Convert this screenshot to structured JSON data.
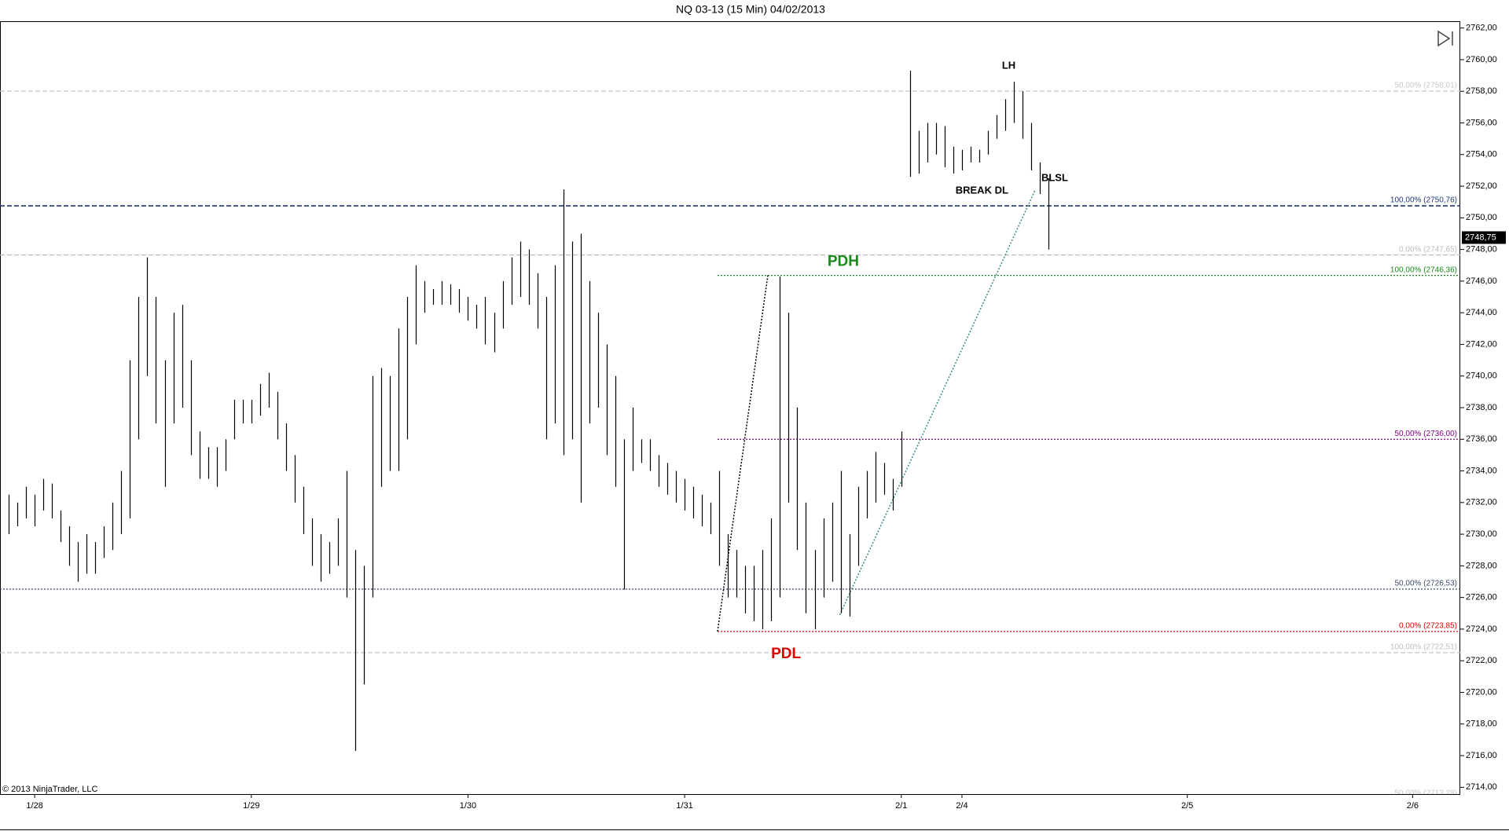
{
  "chart_data": {
    "type": "ohlc",
    "title": "NQ 03-13 (15 Min)  04/02/2013",
    "copyright": "© 2013 NinjaTrader, LLC",
    "bar_color": "#000000",
    "xlim": [
      0,
      168.5
    ],
    "xticks": [
      {
        "value": 4,
        "label": "1/28"
      },
      {
        "value": 29,
        "label": "1/29"
      },
      {
        "value": 54,
        "label": "1/30"
      },
      {
        "value": 79,
        "label": "1/31"
      },
      {
        "value": 104,
        "label": "2/1"
      },
      {
        "value": 111,
        "label": "2/4"
      },
      {
        "value": 137,
        "label": "2/5"
      },
      {
        "value": 163,
        "label": "2/6"
      }
    ],
    "ylim": [
      2713.57,
      2762.43
    ],
    "yticks": [
      {
        "value": 2714,
        "label": "2714,00"
      },
      {
        "value": 2716,
        "label": "2716,00"
      },
      {
        "value": 2718,
        "label": "2718,00"
      },
      {
        "value": 2720,
        "label": "2720,00"
      },
      {
        "value": 2722,
        "label": "2722,00"
      },
      {
        "value": 2724,
        "label": "2724,00"
      },
      {
        "value": 2726,
        "label": "2726,00"
      },
      {
        "value": 2728,
        "label": "2728,00"
      },
      {
        "value": 2730,
        "label": "2730,00"
      },
      {
        "value": 2732,
        "label": "2732,00"
      },
      {
        "value": 2734,
        "label": "2734,00"
      },
      {
        "value": 2736,
        "label": "2736,00"
      },
      {
        "value": 2738,
        "label": "2738,00"
      },
      {
        "value": 2740,
        "label": "2740,00"
      },
      {
        "value": 2742,
        "label": "2742,00"
      },
      {
        "value": 2744,
        "label": "2744,00"
      },
      {
        "value": 2746,
        "label": "2746,00"
      },
      {
        "value": 2748,
        "label": "2748,00"
      },
      {
        "value": 2750,
        "label": "2750,00"
      },
      {
        "value": 2752,
        "label": "2752,00"
      },
      {
        "value": 2754,
        "label": "2754,00"
      },
      {
        "value": 2756,
        "label": "2756,00"
      },
      {
        "value": 2758,
        "label": "2758,00"
      },
      {
        "value": 2760,
        "label": "2760,00"
      },
      {
        "value": 2762,
        "label": "2762,00"
      }
    ],
    "x": [
      1,
      2,
      3,
      4,
      5,
      6,
      7,
      8,
      9,
      10,
      11,
      12,
      13,
      14,
      15,
      16,
      17,
      18,
      19,
      20,
      21,
      22,
      23,
      24,
      25,
      26,
      27,
      28,
      29,
      30,
      31,
      32,
      33,
      34,
      35,
      36,
      37,
      38,
      39,
      40,
      41,
      42,
      43,
      44,
      45,
      46,
      47,
      48,
      49,
      50,
      51,
      52,
      53,
      54,
      55,
      56,
      57,
      58,
      59,
      60,
      61,
      62,
      63,
      64,
      65,
      66,
      67,
      68,
      69,
      70,
      71,
      72,
      73,
      74,
      75,
      76,
      77,
      78,
      79,
      80,
      81,
      82,
      83,
      84,
      85,
      86,
      87,
      88,
      89,
      90,
      91,
      92,
      93,
      94,
      95,
      96,
      97,
      98,
      99,
      100,
      101,
      102,
      103,
      104,
      105,
      106,
      107,
      108,
      109,
      110,
      111,
      112,
      113,
      114,
      115,
      116,
      117,
      118,
      119,
      120,
      121
    ],
    "low": [
      2730,
      2730.5,
      2731,
      2730.5,
      2731.5,
      2731,
      2729.5,
      2728,
      2727,
      2727.5,
      2727.5,
      2728.5,
      2729,
      2730,
      2731,
      2736,
      2740,
      2737,
      2733,
      2737,
      2738,
      2735,
      2733.5,
      2733.5,
      2733,
      2734,
      2736,
      2737,
      2737,
      2737.5,
      2738,
      2736,
      2734,
      2732,
      2730,
      2728,
      2727,
      2727.5,
      2728,
      2726,
      2716.3,
      2720.5,
      2726,
      2733,
      2734,
      2734,
      2736,
      2742,
      2744,
      2744.5,
      2744.5,
      2744.5,
      2744,
      2743.5,
      2743,
      2742,
      2741.5,
      2743,
      2744.5,
      2745,
      2744.5,
      2743,
      2736,
      2737,
      2735,
      2736,
      2732,
      2737,
      2738,
      2735,
      2733,
      2726.5,
      2734,
      2734.5,
      2734,
      2733,
      2732.5,
      2732,
      2731.5,
      2731,
      2730.5,
      2730,
      2728,
      2726,
      2726,
      2725,
      2724.5,
      2724,
      2724.5,
      2726,
      2732,
      2729,
      2725,
      2724,
      2726,
      2727,
      2725,
      2724.8,
      2728,
      2731,
      2732,
      2732.5,
      2731.5,
      2733,
      2752.6,
      2752.8,
      2753.5,
      2754,
      2753.2,
      2752.8,
      2753,
      2753.5,
      2753.5,
      2754,
      2755,
      2755.5,
      2756,
      2755,
      2753,
      2751.5,
      2748
    ],
    "high": [
      2732.5,
      2732,
      2733,
      2732.5,
      2733.5,
      2733.2,
      2731.5,
      2730.5,
      2729.5,
      2730,
      2729.5,
      2730.5,
      2732,
      2734,
      2741,
      2745,
      2747.5,
      2745,
      2741,
      2744,
      2744.5,
      2741,
      2736.5,
      2735.5,
      2735.5,
      2736,
      2738.5,
      2738.5,
      2738.5,
      2739.5,
      2740.2,
      2739,
      2737,
      2735,
      2733,
      2731,
      2730,
      2729.5,
      2731,
      2734,
      2729,
      2728,
      2740,
      2740.5,
      2740,
      2743,
      2745,
      2747,
      2746,
      2745.5,
      2746,
      2745.8,
      2745.5,
      2745,
      2744.5,
      2745,
      2744,
      2746,
      2747.5,
      2748.5,
      2748,
      2746.5,
      2745,
      2747,
      2751.8,
      2748.5,
      2749,
      2746,
      2744,
      2742,
      2740,
      2736,
      2738,
      2736,
      2736,
      2735,
      2734.5,
      2734,
      2733.5,
      2733,
      2732.5,
      2732,
      2734,
      2730,
      2729,
      2728,
      2728,
      2729,
      2731,
      2746.3,
      2744,
      2738,
      2732,
      2729,
      2731,
      2732,
      2734,
      2730,
      2733,
      2734,
      2735.2,
      2734.5,
      2733.5,
      2736.5,
      2759.3,
      2755.5,
      2756,
      2756,
      2755.8,
      2754.5,
      2754.3,
      2754.5,
      2754.3,
      2755.5,
      2756.5,
      2757.5,
      2758.6,
      2758,
      2756,
      2753.5,
      2752.5
    ],
    "levels": [
      {
        "value": 2758.01,
        "label": "50,00% (2758,01)",
        "color": "#c8c8c8",
        "style": "dashed"
      },
      {
        "value": 2750.76,
        "label": "100,00% (2750,76)",
        "color": "#1f3a6e",
        "style": "dashed"
      },
      {
        "value": 2747.65,
        "label": "0,00% (2747,65)",
        "color": "#bdbdbd",
        "style": "dashed"
      },
      {
        "value": 2746.36,
        "label": "100,00% (2746,36)",
        "color": "#1a8a1a",
        "style": "dotted",
        "xstart": 82.8
      },
      {
        "value": 2736.0,
        "label": "50,00% (2736,00)",
        "color": "#800080",
        "style": "dotted",
        "xstart": 82.8
      },
      {
        "value": 2726.53,
        "label": "50,00% (2726,53)",
        "color": "#3a4a6a",
        "style": "dotted"
      },
      {
        "value": 2723.85,
        "label": "0,00% (2723,85)",
        "color": "#e00000",
        "style": "dotted",
        "xstart": 82.8
      },
      {
        "value": 2722.51,
        "label": "100,00% (2722,51)",
        "color": "#bdbdbd",
        "style": "dashed"
      },
      {
        "value": 2713.28,
        "label": "50,00% (2713,28)",
        "color": "#c8c8c8",
        "style": "dashed"
      }
    ],
    "trendlines": [
      {
        "x": [
          82.8,
          88.6
        ],
        "y": [
          2723.85,
          2746.36
        ],
        "color": "#000000"
      },
      {
        "x": [
          96.9,
          119.4
        ],
        "y": [
          2724.9,
          2751.7
        ],
        "color": "#3a8a8a"
      }
    ],
    "annotations": [
      {
        "text": "LH",
        "x": 116.4,
        "y": 2759.6,
        "color": "#000000",
        "size": 13
      },
      {
        "text": "BLSL",
        "x": 121.7,
        "y": 2752.5,
        "color": "#000000",
        "size": 13
      },
      {
        "text": "BREAK DL",
        "x": 113.3,
        "y": 2751.7,
        "color": "#000000",
        "size": 13
      },
      {
        "text": "PDH",
        "x": 97.3,
        "y": 2747.2,
        "color": "#1a8a1a",
        "size": 19
      },
      {
        "text": "PDL",
        "x": 90.7,
        "y": 2722.4,
        "color": "#e00000",
        "size": 19
      }
    ],
    "last_price": {
      "value": 2748.75,
      "label": "2748,75"
    }
  }
}
